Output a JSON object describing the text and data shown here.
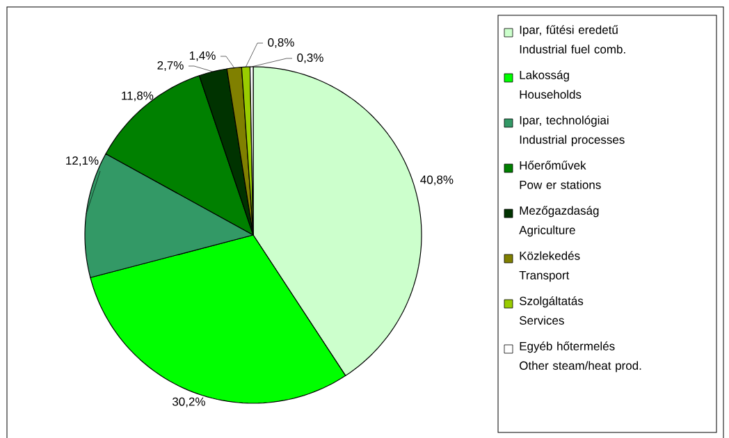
{
  "chart_data": {
    "type": "pie",
    "categories": [
      "Ipar, fűtési eredetű\nIndustrial fuel comb.",
      "Lakosság\nHouseholds",
      "Ipar, technológiai\nIndustrial processes",
      "Hőerőművek\nPow er stations",
      "Mezőgazdaság\nAgriculture",
      "Közlekedés\nTransport",
      "Szolgáltatás\nServices",
      "Egyéb hőtermelés\nOther steam/heat prod."
    ],
    "values": [
      40.8,
      30.2,
      12.1,
      11.8,
      2.7,
      1.4,
      0.8,
      0.3
    ],
    "value_labels": [
      "40,8%",
      "30,2%",
      "12,1%",
      "11,8%",
      "2,7%",
      "1,4%",
      "0,8%",
      "0,3%"
    ],
    "colors": [
      "#ccffcc",
      "#00ff00",
      "#339966",
      "#008000",
      "#003300",
      "#808000",
      "#99cc00",
      "#ffffff"
    ],
    "legend": "right"
  }
}
